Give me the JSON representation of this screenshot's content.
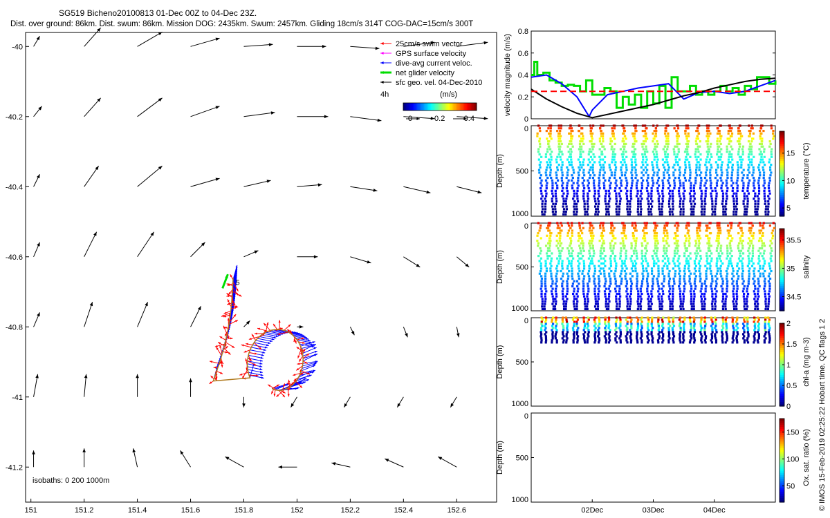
{
  "header": {
    "title": "SG519 Bicheno20100813 01-Dec 00Z to 04-Dec 23Z.",
    "subtitle": "Dist. over ground: 86km. Dist. swum: 86km. Mission DOG: 2435km. Swum: 2457km. Gliding 18cm/s 314T COG-DAC=15cm/s 300T"
  },
  "side_label": "© IMOS 15-Feb-2019 02:25:22 Hobart time. QC flags 1  2",
  "colors": {
    "swim": "#ff0000",
    "gps": "#ff00ff",
    "current": "#0000ff",
    "net": "#00dd00",
    "geo": "#000000",
    "track": "#b07a1e"
  },
  "chart_data": [
    {
      "id": "map",
      "type": "scatter",
      "xlim": [
        150.98,
        152.75
      ],
      "ylim": [
        -41.3,
        -39.96
      ],
      "x_ticks": [
        "151",
        "151.2",
        "151.4",
        "151.6",
        "151.8",
        "152",
        "152.2",
        "152.4",
        "152.6"
      ],
      "x_tick_values": [
        151,
        151.2,
        151.4,
        151.6,
        151.8,
        152,
        152.2,
        152.4,
        152.6
      ],
      "y_ticks": [
        "-40",
        "-40.2",
        "-40.4",
        "-40.6",
        "-40.8",
        "-41",
        "-41.2"
      ],
      "y_tick_values": [
        -40,
        -40.2,
        -40.4,
        -40.6,
        -40.8,
        -41,
        -41.2
      ],
      "legend": {
        "position": "top-right",
        "entries": [
          "25cm/s swim vector",
          "GPS surface velocity",
          "dive-avg current veloc.",
          "net glider velocity",
          "sfc geo. vel. 04-Dec-2010"
        ],
        "duration": "4h",
        "colorbar_label": "(m/s)",
        "colorbar_ticks": [
          "0",
          "0.2",
          "0.4"
        ]
      },
      "isobaths_label": "isobaths: 0   200   1000m",
      "track_point_label": "5",
      "geo_vectors": {
        "lons": [
          151.01,
          151.2,
          151.4,
          151.6,
          151.8,
          152.0,
          152.2,
          152.4,
          152.6
        ],
        "lats": [
          -40,
          -40.2,
          -40.4,
          -40.6,
          -40.8,
          -41,
          -41.2
        ],
        "u": [
          [
            0.03,
            0.08,
            0.12,
            0.14,
            0.14,
            0.14,
            0.14,
            0.15,
            0.15
          ],
          [
            0.04,
            0.08,
            0.12,
            0.14,
            0.15,
            0.15,
            0.15,
            0.15,
            0.15
          ],
          [
            0.03,
            0.07,
            0.12,
            0.14,
            0.13,
            0.12,
            0.13,
            0.13,
            0.12
          ],
          [
            0.03,
            0.06,
            0.08,
            0.07,
            0.07,
            0.1,
            0.1,
            0.08,
            0.06
          ],
          [
            0.03,
            0.04,
            0.05,
            0.05,
            0.03,
            0.03,
            0.02,
            0.02,
            0.01
          ],
          [
            0.02,
            0.01,
            0.0,
            0.0,
            0.0,
            -0.03,
            -0.03,
            -0.03,
            -0.03
          ],
          [
            0.0,
            0.0,
            -0.02,
            -0.05,
            -0.09,
            -0.09,
            -0.09,
            -0.09,
            -0.09
          ]
        ],
        "v": [
          [
            0.05,
            0.09,
            0.07,
            0.04,
            0.01,
            0.0,
            -0.01,
            0.02,
            0.02
          ],
          [
            0.05,
            0.09,
            0.09,
            0.05,
            0.02,
            0.0,
            -0.02,
            -0.01,
            -0.01
          ],
          [
            0.06,
            0.1,
            0.1,
            0.04,
            0.03,
            0.01,
            -0.02,
            -0.03,
            -0.03
          ],
          [
            0.07,
            0.12,
            0.12,
            0.07,
            0.03,
            0.0,
            -0.03,
            -0.05,
            -0.05
          ],
          [
            0.07,
            0.12,
            0.12,
            0.1,
            0.03,
            0.0,
            -0.04,
            -0.05,
            -0.05
          ],
          [
            0.11,
            0.11,
            0.11,
            0.09,
            -0.05,
            -0.05,
            -0.05,
            -0.05,
            -0.05
          ],
          [
            0.08,
            0.09,
            0.09,
            0.08,
            0.05,
            0.0,
            0.02,
            0.04,
            0.05
          ]
        ]
      }
    },
    {
      "id": "velocity",
      "type": "line",
      "xlim": [
        0,
        4
      ],
      "ylim": [
        0,
        0.8
      ],
      "ylabel": "velocity magnitude (m/s)",
      "y_ticks": [
        "0",
        "0.2",
        "0.4",
        "0.6",
        "0.8"
      ],
      "y_tick_values": [
        0,
        0.2,
        0.4,
        0.6,
        0.8
      ],
      "series": [
        {
          "name": "net glider velocity",
          "color": "#00dd00",
          "x": [
            0,
            0.05,
            0.1,
            0.2,
            0.3,
            0.4,
            0.5,
            0.6,
            0.7,
            0.8,
            0.9,
            1.0,
            1.1,
            1.2,
            1.3,
            1.4,
            1.5,
            1.6,
            1.7,
            1.8,
            1.9,
            2.0,
            2.1,
            2.2,
            2.3,
            2.4,
            2.5,
            2.6,
            2.7,
            2.8,
            2.9,
            3.0,
            3.1,
            3.2,
            3.3,
            3.4,
            3.5,
            3.6,
            3.7,
            3.8,
            3.9,
            4.0
          ],
          "y": [
            0.4,
            0.52,
            0.4,
            0.42,
            0.35,
            0.33,
            0.3,
            0.31,
            0.3,
            0.25,
            0.35,
            0.22,
            0.22,
            0.28,
            0.25,
            0.1,
            0.2,
            0.13,
            0.22,
            0.1,
            0.25,
            0.14,
            0.3,
            0.1,
            0.38,
            0.25,
            0.25,
            0.3,
            0.22,
            0.25,
            0.22,
            0.25,
            0.3,
            0.25,
            0.28,
            0.22,
            0.3,
            0.27,
            0.38,
            0.38,
            0.32,
            0.35
          ]
        },
        {
          "name": "dive-avg current veloc.",
          "color": "#0000ff",
          "x": [
            0,
            0.25,
            0.5,
            0.75,
            0.95,
            1.0,
            1.25,
            1.5,
            1.75,
            2.0,
            2.25,
            2.5,
            2.75,
            3.0,
            3.25,
            3.5,
            3.75,
            4.0
          ],
          "y": [
            0.38,
            0.4,
            0.32,
            0.2,
            0.02,
            0.08,
            0.22,
            0.25,
            0.28,
            0.3,
            0.32,
            0.18,
            0.24,
            0.25,
            0.23,
            0.25,
            0.3,
            0.35
          ]
        },
        {
          "name": "sfc geo. vel.",
          "color": "#000000",
          "x": [
            0,
            0.25,
            0.5,
            0.75,
            1.0,
            1.25,
            1.5,
            1.75,
            2.0,
            2.25,
            2.5,
            2.75,
            3.0,
            3.25,
            3.5,
            3.75,
            4.0
          ],
          "y": [
            0.27,
            0.18,
            0.11,
            0.05,
            0.01,
            0.04,
            0.07,
            0.1,
            0.13,
            0.17,
            0.21,
            0.24,
            0.28,
            0.31,
            0.34,
            0.36,
            0.37
          ]
        },
        {
          "name": "25cm/s swim vector",
          "color": "#ff0000",
          "x": [
            0,
            4
          ],
          "y": [
            0.25,
            0.25
          ]
        }
      ]
    },
    {
      "id": "temperature",
      "type": "scatter",
      "ylabel": "Depth (m)",
      "ylim": [
        1000,
        0
      ],
      "y_ticks": [
        "0",
        "500",
        "1000"
      ],
      "y_tick_values": [
        0,
        500,
        1000
      ],
      "dives": 22,
      "max_depth": 980,
      "colorbar": {
        "label": "temperature (°C)",
        "min": 3.5,
        "max": 19,
        "ticks": [
          "5",
          "10",
          "15"
        ],
        "tick_values": [
          5,
          10,
          15
        ]
      }
    },
    {
      "id": "salinity",
      "type": "scatter",
      "ylabel": "Depth (m)",
      "ylim": [
        1000,
        0
      ],
      "y_ticks": [
        "0",
        "500",
        "1000"
      ],
      "y_tick_values": [
        0,
        500,
        1000
      ],
      "dives": 22,
      "max_depth": 980,
      "colorbar": {
        "label": "salinity",
        "min": 34.25,
        "max": 35.7,
        "ticks": [
          "34.5",
          "35",
          "35.5"
        ],
        "tick_values": [
          34.5,
          35,
          35.5
        ]
      }
    },
    {
      "id": "chla",
      "type": "scatter",
      "ylabel": "Depth (m)",
      "ylim": [
        1000,
        0
      ],
      "y_ticks": [
        "0",
        "500",
        "1000"
      ],
      "y_tick_values": [
        0,
        500,
        1000
      ],
      "dives": 22,
      "max_depth": 280,
      "colorbar": {
        "label": "chl-a (mg m-3)",
        "min": 0,
        "max": 2,
        "ticks": [
          "0",
          "0.5",
          "1",
          "1.5",
          "2"
        ],
        "tick_values": [
          0,
          0.5,
          1,
          1.5,
          2
        ]
      }
    },
    {
      "id": "oxygen",
      "type": "scatter",
      "ylabel": "Depth (m)",
      "ylim": [
        1000,
        0
      ],
      "y_ticks": [
        "0",
        "500",
        "1000"
      ],
      "y_tick_values": [
        0,
        500,
        1000
      ],
      "x_ticks": [
        "02Dec",
        "03Dec",
        "04Dec"
      ],
      "x_tick_values": [
        1,
        2,
        3
      ],
      "colorbar": {
        "label": "Ox. sat. ratio (%)",
        "min": 20,
        "max": 175,
        "ticks": [
          "50",
          "100",
          "150"
        ],
        "tick_values": [
          50,
          100,
          150
        ]
      }
    }
  ]
}
